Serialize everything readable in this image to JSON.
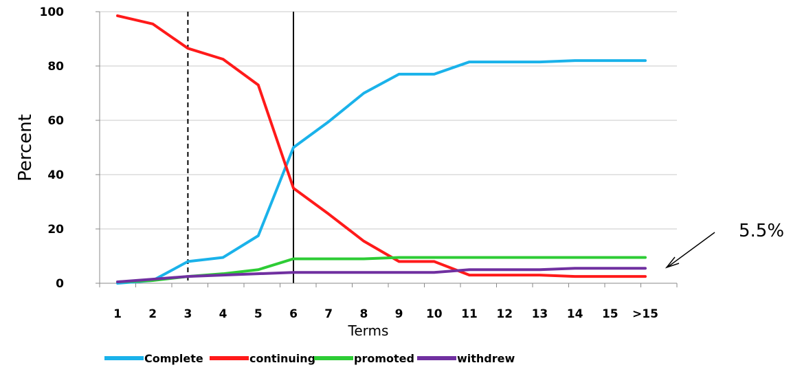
{
  "chart_data": {
    "type": "line",
    "title": "",
    "xlabel": "Terms",
    "ylabel": "Percent",
    "categories": [
      "1",
      "2",
      "3",
      "4",
      "5",
      "6",
      "7",
      "8",
      "9",
      "10",
      "11",
      "12",
      "13",
      "14",
      "15",
      ">15"
    ],
    "ylim": [
      0,
      100
    ],
    "yticks": [
      "0",
      "20",
      "40",
      "60",
      "80",
      "100"
    ],
    "grid": true,
    "legend_position": "bottom",
    "series": [
      {
        "name": "Complete",
        "color": "#1ab2ea",
        "values": [
          0,
          1,
          8,
          9.5,
          17.5,
          50,
          59.5,
          70,
          77,
          77,
          81.5,
          81.5,
          81.5,
          82,
          82,
          82
        ]
      },
      {
        "name": "continuing",
        "color": "#ff1a1a",
        "values": [
          98.5,
          95.5,
          86.5,
          82.5,
          73,
          35,
          25.5,
          15.5,
          8,
          8,
          3,
          3,
          3,
          2.5,
          2.5,
          2.5
        ]
      },
      {
        "name": "promoted",
        "color": "#2dcc35",
        "values": [
          0.5,
          1,
          2.5,
          3.5,
          5,
          9,
          9,
          9,
          9.5,
          9.5,
          9.5,
          9.5,
          9.5,
          9.5,
          9.5,
          9.5
        ]
      },
      {
        "name": "withdrew",
        "color": "#7030a0",
        "values": [
          0.5,
          1.5,
          2.5,
          3,
          3.5,
          4,
          4,
          4,
          4,
          4,
          5,
          5,
          5,
          5.5,
          5.5,
          5.5
        ]
      }
    ],
    "reference_lines": [
      {
        "at": "3",
        "style": "dashed"
      },
      {
        "at": "6",
        "style": "solid"
      }
    ],
    "annotations": [
      {
        "text": "5.5%",
        "points_to": "withdrew",
        "at": ">15"
      }
    ]
  }
}
